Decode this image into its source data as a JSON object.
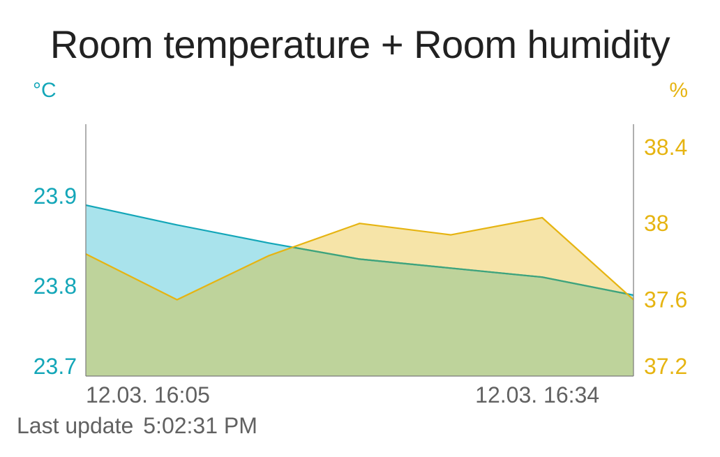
{
  "card": {
    "title": "Room temperature + Room humidity",
    "footer_label": "Last update",
    "footer_time": "5:02:31 PM"
  },
  "colors": {
    "temperature_line": "#13a6b8",
    "temperature_fill": "#a9e3ec",
    "humidity_line": "#e6b411",
    "humidity_fill": "#f6e4a8",
    "overlap_fill": "#bed39b",
    "overlap_line": "#3fa37a",
    "axis": "#7a7a7a",
    "text": "#616161"
  },
  "chart_data": {
    "type": "area",
    "title": "Room temperature + Room humidity",
    "x": [
      "12.03. 16:05",
      "",
      "",
      "",
      "",
      "12.03. 16:34",
      ""
    ],
    "x_tick_labels": [
      "12.03. 16:05",
      "12.03. 16:34"
    ],
    "series": [
      {
        "axis": "left",
        "values": [
          23.89,
          23.868,
          23.848,
          23.83,
          23.82,
          23.81,
          23.79
        ]
      },
      {
        "axis": "right",
        "values": [
          37.84,
          37.6,
          37.83,
          38.0,
          37.94,
          38.03,
          37.6
        ]
      }
    ],
    "y_left": {
      "unit": "°C",
      "ylim": [
        23.7,
        23.98
      ],
      "ticks": [
        "23.7",
        "23.8",
        "23.9"
      ]
    },
    "y_right": {
      "unit": "%",
      "ylim": [
        37.2,
        38.52
      ],
      "ticks": [
        "37.2",
        "37.6",
        "38",
        "38.4"
      ]
    },
    "grid": false,
    "legend": "none"
  }
}
